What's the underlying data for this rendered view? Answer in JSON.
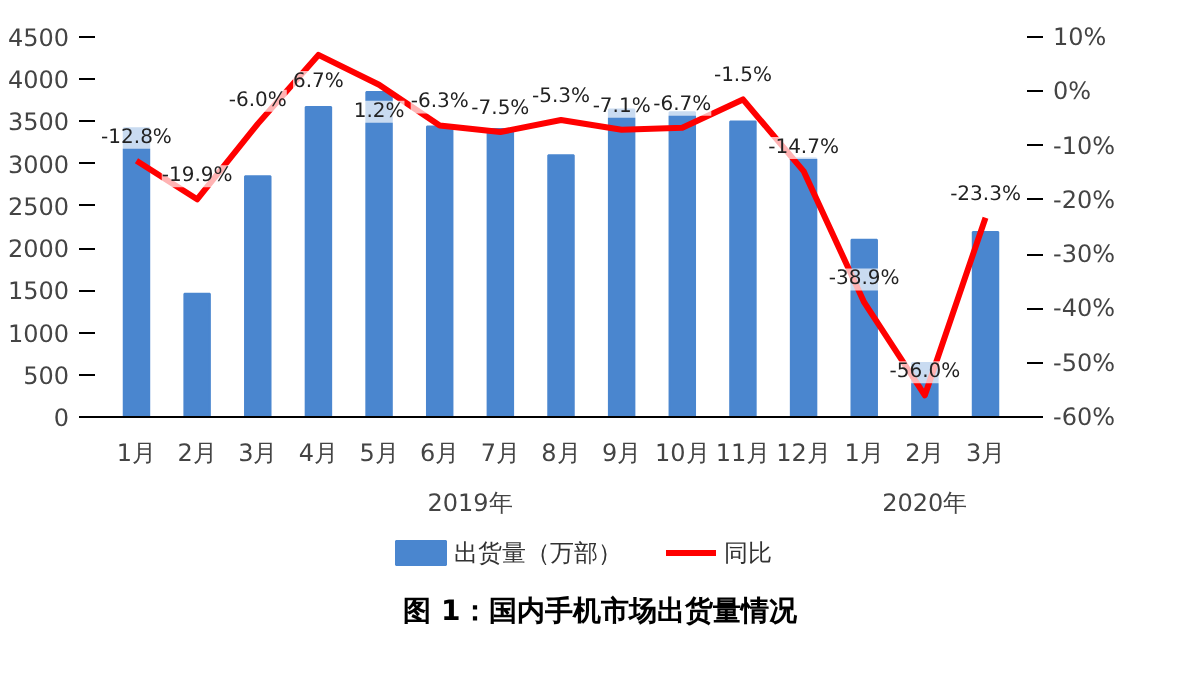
{
  "chart_data": {
    "type": "bar",
    "title": "图 1：国内手机市场出货量情况",
    "categories": [
      "1月",
      "2月",
      "3月",
      "4月",
      "5月",
      "6月",
      "7月",
      "8月",
      "9月",
      "10月",
      "11月",
      "12月",
      "1月",
      "2月",
      "3月"
    ],
    "series": [
      {
        "name": "出货量（万部）",
        "color": "#4a86cf",
        "values": [
          3420,
          1460,
          2850,
          3670,
          3850,
          3440,
          3410,
          3100,
          3640,
          3610,
          3500,
          3060,
          2100,
          640,
          2190
        ]
      },
      {
        "name": "同比",
        "type": "line",
        "axis": "y2",
        "color": "#ff0000",
        "values": [
          -12.8,
          -19.9,
          -6.0,
          6.7,
          1.2,
          -6.3,
          -7.5,
          -5.3,
          -7.1,
          -6.7,
          -1.5,
          -14.7,
          -38.9,
          -56.0,
          -23.3
        ],
        "value_labels": [
          "-12.8%",
          "-19.9%",
          "-6.0%",
          "6.7%",
          "1.2%",
          "-6.3%",
          "-7.5%",
          "-5.3%",
          "-7.1%",
          "-6.7%",
          "-1.5%",
          "-14.7%",
          "-38.9%",
          "-56.0%",
          "-23.3%"
        ]
      }
    ],
    "ylim": [
      0,
      4500
    ],
    "yticks": [
      0,
      500,
      1000,
      1500,
      2000,
      2500,
      3000,
      3500,
      4000,
      4500
    ],
    "y2lim": [
      -60,
      10
    ],
    "y2ticks": [
      {
        "value": 10,
        "label": "10%"
      },
      {
        "value": 0,
        "label": "0%"
      },
      {
        "value": -10,
        "label": "-10%"
      },
      {
        "value": -20,
        "label": "-20%"
      },
      {
        "value": -30,
        "label": "-30%"
      },
      {
        "value": -40,
        "label": "-40%"
      },
      {
        "value": -50,
        "label": "-50%"
      },
      {
        "value": -60,
        "label": "-60%"
      }
    ],
    "annotations": [
      "2019年",
      "2020年"
    ],
    "grid": false,
    "legend": "bottom"
  }
}
